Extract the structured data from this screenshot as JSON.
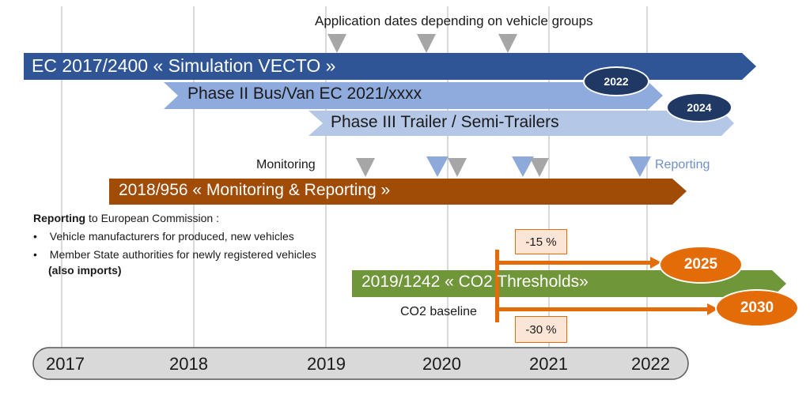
{
  "header": {
    "application_dates": "Application dates depending on vehicle groups"
  },
  "bars": {
    "vecto": "EC 2017/2400 « Simulation VECTO »",
    "phase2": "Phase II Bus/Van  EC 2021/xxxx",
    "phase3": "Phase III Trailer / Semi-Trailers",
    "monitoring": "2018/956 « Monitoring & Reporting »",
    "co2": "2019/1242 « CO2 Thresholds»"
  },
  "badges": {
    "phase2_year": "2022",
    "phase3_year": "2024",
    "target_2025": "2025",
    "target_2030": "2030"
  },
  "labels": {
    "monitoring": "Monitoring",
    "reporting": "Reporting",
    "co2_baseline": "CO2 baseline",
    "pct_15": "-15 %",
    "pct_30": "-30 %"
  },
  "reporting_note": {
    "title_bold": "Reporting",
    "title_rest": " to European Commission :",
    "bullets": [
      "Vehicle manufacturers for produced, new vehicles",
      "Member State authorities for newly registered vehicles"
    ],
    "also_imports": "(also imports)"
  },
  "timeline": {
    "years": [
      "2017",
      "2018",
      "2019",
      "2020",
      "2021",
      "2022"
    ]
  },
  "colors": {
    "vecto": "#2f5597",
    "phase2": "#8faadc",
    "phase3": "#b4c7e7",
    "monitoring": "#a04c06",
    "co2": "#70963a",
    "orange": "#e36c09",
    "navy": "#203864",
    "gray": "#a6a6a6",
    "light_blue": "#8eaadb"
  }
}
